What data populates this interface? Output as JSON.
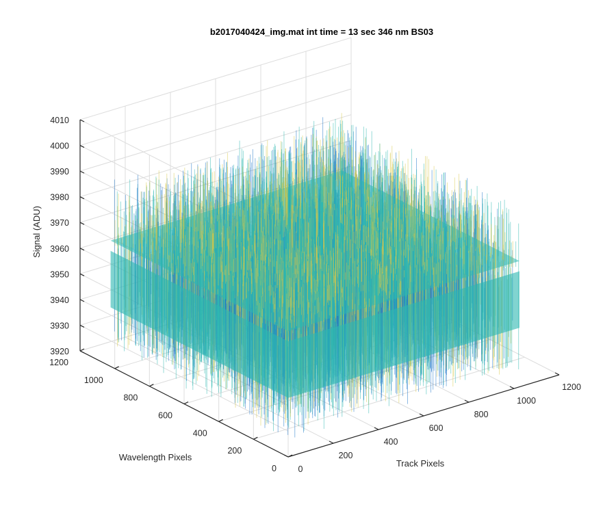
{
  "chart_data": {
    "type": "surface",
    "title": "b2017040424_img.mat int time = 13 sec  346 nm BS03",
    "xlabel": "Track Pixels",
    "ylabel": "Wavelength Pixels",
    "zlabel": "Signal (ADU)",
    "xlim": [
      0,
      1200
    ],
    "ylim": [
      0,
      1200
    ],
    "zlim": [
      3920,
      4010
    ],
    "x_ticks": [
      "0",
      "200",
      "400",
      "600",
      "800",
      "1000",
      "1200"
    ],
    "y_ticks": [
      "0",
      "200",
      "400",
      "600",
      "800",
      "1000",
      "1200"
    ],
    "z_ticks": [
      "3920",
      "3930",
      "3940",
      "3950",
      "3960",
      "3970",
      "3980",
      "3990",
      "4000",
      "4010"
    ],
    "grid": true,
    "surface": {
      "x_extent": [
        0,
        1024
      ],
      "y_extent": [
        0,
        1024
      ],
      "mean_signal": 3955,
      "spread_low": 3930,
      "spread_high": 3995,
      "colormap": "parula",
      "colors": {
        "low": "#1a73c9",
        "mid": "#2db8b0",
        "high": "#d8c848"
      }
    }
  }
}
